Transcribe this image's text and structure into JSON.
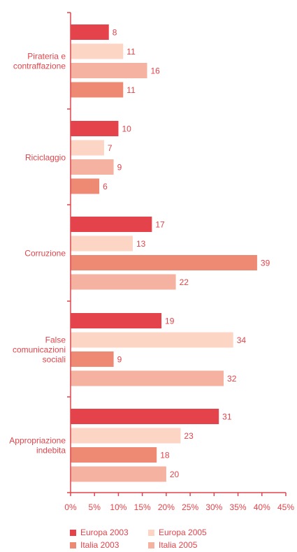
{
  "chart_data": {
    "type": "bar",
    "orientation": "horizontal",
    "categories": [
      [
        "Pirateria e",
        "contraffazione"
      ],
      [
        "Riciclaggio"
      ],
      [
        "Corruzione"
      ],
      [
        "False",
        "comunicazioni",
        "sociali"
      ],
      [
        "Appropriazione",
        "indebita"
      ]
    ],
    "bars": [
      [
        {
          "series": "Europa 2003",
          "value": 8
        },
        {
          "series": "Europa 2005",
          "value": 11
        },
        {
          "series": "Italia 2005",
          "value": 16
        },
        {
          "series": "Italia 2003",
          "value": 11
        }
      ],
      [
        {
          "series": "Europa 2003",
          "value": 10
        },
        {
          "series": "Europa 2005",
          "value": 7
        },
        {
          "series": "Italia 2005",
          "value": 9
        },
        {
          "series": "Italia 2003",
          "value": 6
        }
      ],
      [
        {
          "series": "Europa 2003",
          "value": 17
        },
        {
          "series": "Europa 2005",
          "value": 13
        },
        {
          "series": "Italia 2003",
          "value": 39
        },
        {
          "series": "Italia 2005",
          "value": 22
        }
      ],
      [
        {
          "series": "Europa 2003",
          "value": 19
        },
        {
          "series": "Europa 2005",
          "value": 34
        },
        {
          "series": "Italia 2003",
          "value": 9
        },
        {
          "series": "Italia 2005",
          "value": 32
        }
      ],
      [
        {
          "series": "Europa 2003",
          "value": 31
        },
        {
          "series": "Europa 2005",
          "value": 23
        },
        {
          "series": "Italia 2003",
          "value": 18
        },
        {
          "series": "Italia 2005",
          "value": 20
        }
      ]
    ],
    "series": [
      {
        "name": "Europa 2003",
        "color": "#e5434b"
      },
      {
        "name": "Europa 2005",
        "color": "#fcd5c5"
      },
      {
        "name": "Italia 2003",
        "color": "#ee8a73"
      },
      {
        "name": "Italia 2005",
        "color": "#f6b2a0"
      }
    ],
    "xticks": [
      "0%",
      "5%",
      "10%",
      "15%",
      "20%",
      "25%",
      "30%",
      "35%",
      "40%",
      "45%"
    ],
    "xlim": [
      0,
      45
    ],
    "grid": false,
    "legend_position": "bottom"
  },
  "legend": {
    "rows": [
      [
        "Europa 2003",
        "Europa 2005"
      ],
      [
        "Italia 2003",
        "Italia 2005"
      ]
    ]
  }
}
